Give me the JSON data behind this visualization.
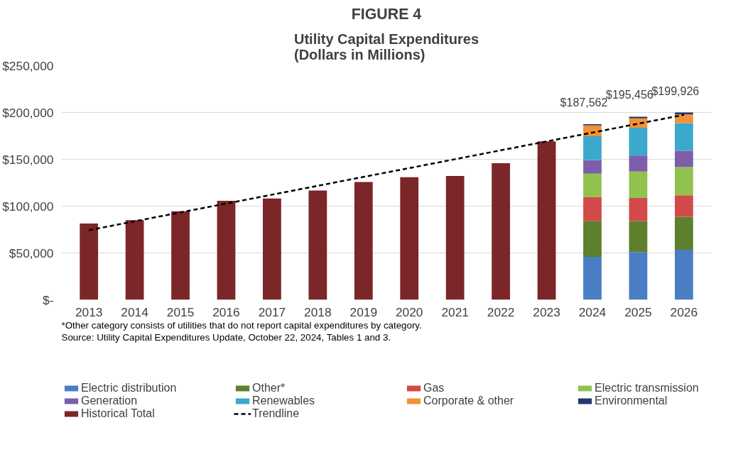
{
  "chart_data": {
    "type": "bar",
    "title": "FIGURE 4",
    "subtitle": "Utility Capital Expenditures\n(Dollars in Millions)",
    "categories": [
      "2013",
      "2014",
      "2015",
      "2016",
      "2017",
      "2018",
      "2019",
      "2020",
      "2021",
      "2022",
      "2023",
      "2024",
      "2025",
      "2026"
    ],
    "stacked": true,
    "series": [
      {
        "name": "Electric distribution",
        "color": "#4a7ec4",
        "values": [
          null,
          null,
          null,
          null,
          null,
          null,
          null,
          null,
          null,
          null,
          null,
          45800,
          51000,
          53400
        ]
      },
      {
        "name": "Other*",
        "color": "#5e7f2c",
        "values": [
          null,
          null,
          null,
          null,
          null,
          null,
          null,
          null,
          null,
          null,
          null,
          38400,
          33100,
          35200
        ]
      },
      {
        "name": "Gas",
        "color": "#d24a4a",
        "values": [
          null,
          null,
          null,
          null,
          null,
          null,
          null,
          null,
          null,
          null,
          null,
          25600,
          24700,
          23000
        ]
      },
      {
        "name": "Electric transmission",
        "color": "#92c24e",
        "values": [
          null,
          null,
          null,
          null,
          null,
          null,
          null,
          null,
          null,
          null,
          null,
          24900,
          28200,
          30000
        ]
      },
      {
        "name": "Generation",
        "color": "#7d5ea9",
        "values": [
          null,
          null,
          null,
          null,
          null,
          null,
          null,
          null,
          null,
          null,
          null,
          14600,
          16900,
          17400
        ]
      },
      {
        "name": "Renewables",
        "color": "#3ba8cc",
        "values": [
          null,
          null,
          null,
          null,
          null,
          null,
          null,
          null,
          null,
          null,
          null,
          25400,
          29800,
          29600
        ]
      },
      {
        "name": "Corporate & other",
        "color": "#f39234",
        "values": [
          null,
          null,
          null,
          null,
          null,
          null,
          null,
          null,
          null,
          null,
          null,
          11500,
          10100,
          9400
        ]
      },
      {
        "name": "Environmental",
        "color": "#24386e",
        "values": [
          null,
          null,
          null,
          null,
          null,
          null,
          null,
          null,
          null,
          null,
          null,
          1362,
          1656,
          1926
        ]
      },
      {
        "name": "Historical Total",
        "color": "#7b2628",
        "values": [
          81500,
          85000,
          94500,
          105700,
          108200,
          116600,
          125800,
          130800,
          132200,
          145800,
          169200,
          null,
          null,
          null
        ]
      },
      {
        "name": "Trendline",
        "type": "line",
        "color": "#000000",
        "line_style": "dashed",
        "values": [
          74300,
          83800,
          93300,
          102700,
          112200,
          121700,
          131200,
          140600,
          150100,
          159600,
          169100,
          178500,
          188000,
          197500
        ]
      }
    ],
    "totals": [
      null,
      null,
      null,
      null,
      null,
      null,
      null,
      null,
      null,
      null,
      null,
      "$187,562",
      "$195,456",
      "$199,926"
    ],
    "ylim": [
      0,
      250000
    ],
    "yticks": [
      {
        "value": 0,
        "label": "$-"
      },
      {
        "value": 50000,
        "label": "$50,000"
      },
      {
        "value": 100000,
        "label": "$100,000"
      },
      {
        "value": 150000,
        "label": "$150,000"
      },
      {
        "value": 200000,
        "label": "$200,000"
      },
      {
        "value": 250000,
        "label": "$250,000"
      }
    ],
    "grid": "y",
    "legend": "bottom",
    "annotations": [
      "*Other category consists of utilities that do not report capital expenditures by category.",
      "Source: Utility Capital Expenditures Update, October 22, 2024, Tables 1 and 3."
    ]
  }
}
